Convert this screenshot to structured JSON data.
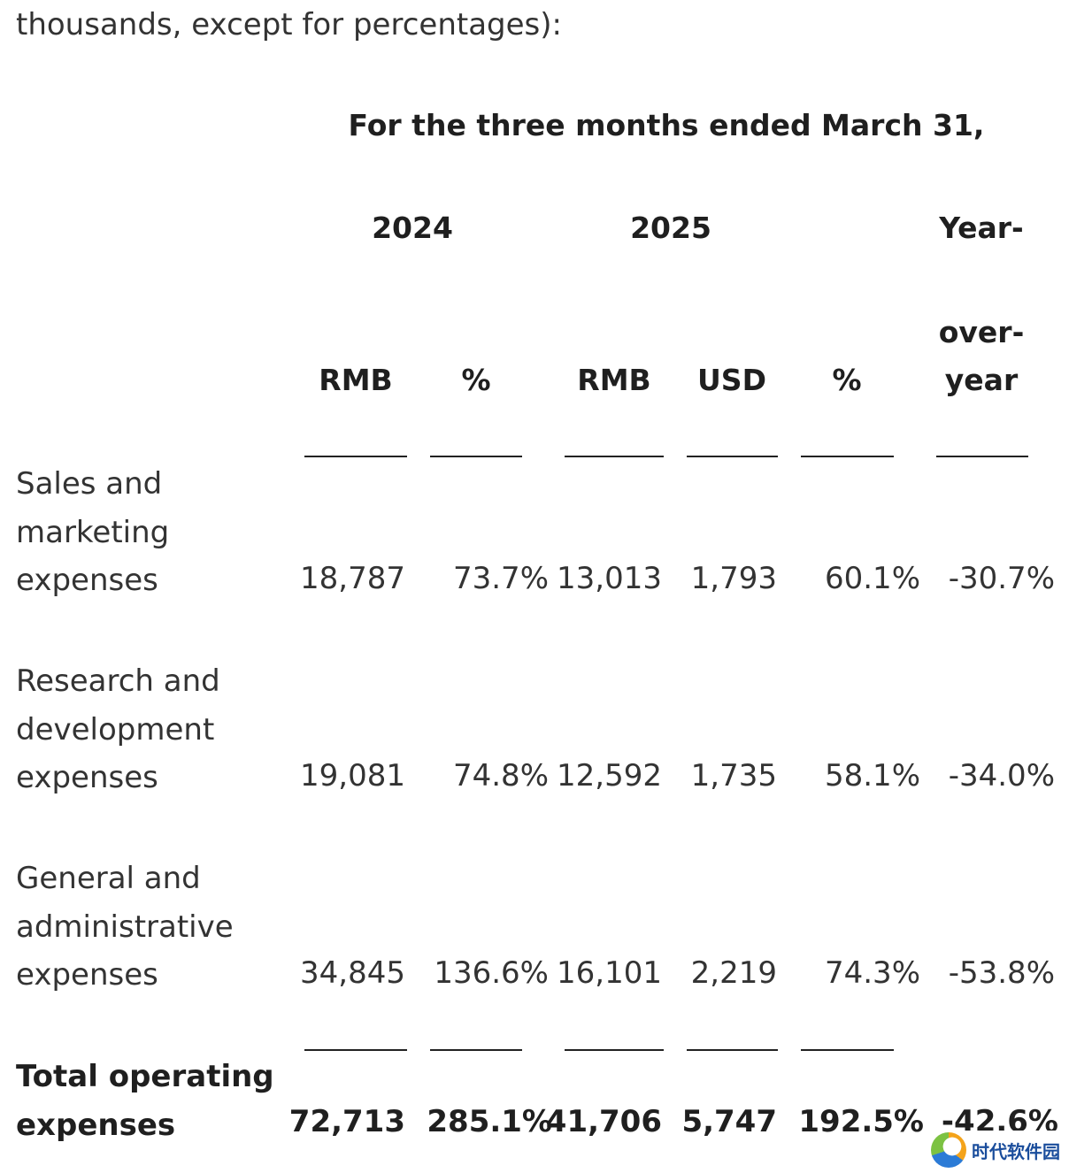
{
  "intro_text": "thousands, except for percentages):",
  "header": {
    "period": "For the three months ended March 31,",
    "year_2024": "2024",
    "year_2025": "2025",
    "yoy_line1": "Year-",
    "yoy_line2": "over-",
    "yoy_line3": "year",
    "col_rmb_2024": "RMB",
    "col_pct_2024": "%",
    "col_rmb_2025": "RMB",
    "col_usd_2025": "USD",
    "col_pct_2025": "%"
  },
  "rows": [
    {
      "label_lines": [
        "Sales and",
        "marketing",
        "expenses"
      ],
      "rmb_2024": "18,787",
      "pct_2024": "73.7%",
      "rmb_2025": "13,013",
      "usd_2025": "1,793",
      "pct_2025": "60.1%",
      "yoy": "-30.7%"
    },
    {
      "label_lines": [
        "Research and",
        "development",
        "expenses"
      ],
      "rmb_2024": "19,081",
      "pct_2024": "74.8%",
      "rmb_2025": "12,592",
      "usd_2025": "1,735",
      "pct_2025": "58.1%",
      "yoy": "-34.0%"
    },
    {
      "label_lines": [
        "General and",
        "administrative",
        "expenses"
      ],
      "rmb_2024": "34,845",
      "pct_2024": "136.6%",
      "rmb_2025": "16,101",
      "usd_2025": "2,219",
      "pct_2025": "74.3%",
      "yoy": "-53.8%"
    }
  ],
  "total": {
    "label_lines": [
      "Total operating",
      "expenses"
    ],
    "rmb_2024": "72,713",
    "pct_2024": "285.1%",
    "rmb_2025": "41,706",
    "usd_2025": "5,747",
    "pct_2025": "192.5%",
    "yoy": "-42.6%"
  },
  "watermark": {
    "text": "时代软件园"
  }
}
